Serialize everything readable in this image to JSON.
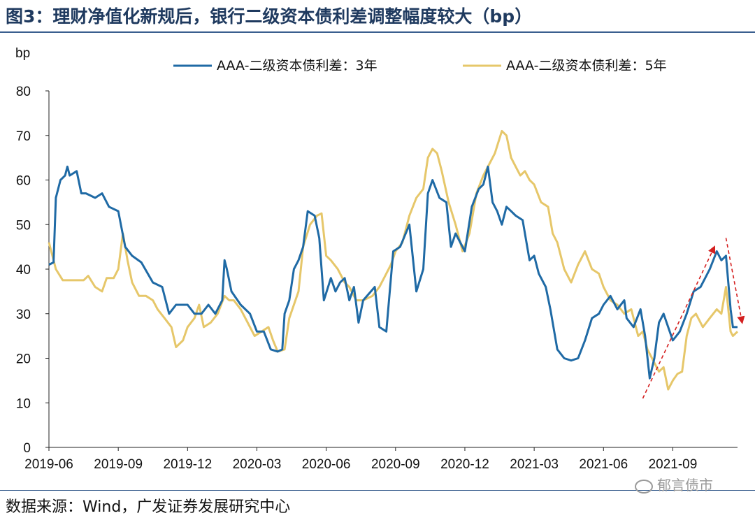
{
  "header": {
    "title": "图3：理财净值化新规后，银行二级资本债利差调整幅度较大（bp）"
  },
  "footer": {
    "source": "数据来源：Wind，广发证券发展研究中心",
    "watermark": "郁言债市"
  },
  "colors": {
    "series_3y": "#1f6aa5",
    "series_5y": "#e6c76a",
    "arrow": "#d42020"
  },
  "chart_data": {
    "type": "line",
    "title": "理财净值化新规后，银行二级资本债利差调整幅度较大（bp）",
    "ylabel": "bp",
    "xlabel": "",
    "ylim": [
      0,
      80
    ],
    "yticks": [
      0,
      10,
      20,
      30,
      40,
      50,
      60,
      70,
      80
    ],
    "x_range": [
      0,
      29.8
    ],
    "xticks": [
      {
        "label": "2019-06",
        "month": 0
      },
      {
        "label": "2019-09",
        "month": 3
      },
      {
        "label": "2019-12",
        "month": 6
      },
      {
        "label": "2020-03",
        "month": 9
      },
      {
        "label": "2020-06",
        "month": 12
      },
      {
        "label": "2020-09",
        "month": 15
      },
      {
        "label": "2020-12",
        "month": 18
      },
      {
        "label": "2021-03",
        "month": 21
      },
      {
        "label": "2021-06",
        "month": 24
      },
      {
        "label": "2021-09",
        "month": 27
      }
    ],
    "legend_position": "top",
    "series": [
      {
        "name": "AAA-二级资本债利差：3年",
        "key": "s3",
        "points": [
          [
            0.0,
            41
          ],
          [
            0.2,
            41.5
          ],
          [
            0.3,
            56
          ],
          [
            0.5,
            60
          ],
          [
            0.7,
            61
          ],
          [
            0.8,
            63
          ],
          [
            0.9,
            61
          ],
          [
            1.2,
            62
          ],
          [
            1.4,
            57
          ],
          [
            1.6,
            57
          ],
          [
            2.0,
            56
          ],
          [
            2.3,
            57
          ],
          [
            2.6,
            54
          ],
          [
            3.0,
            53
          ],
          [
            3.3,
            45
          ],
          [
            3.6,
            43
          ],
          [
            4.0,
            41.5
          ],
          [
            4.5,
            37
          ],
          [
            4.9,
            36
          ],
          [
            5.2,
            30
          ],
          [
            5.5,
            32
          ],
          [
            6.0,
            32
          ],
          [
            6.3,
            30
          ],
          [
            6.6,
            30
          ],
          [
            6.9,
            32
          ],
          [
            7.2,
            30
          ],
          [
            7.5,
            33
          ],
          [
            7.6,
            42
          ],
          [
            7.7,
            40
          ],
          [
            7.9,
            35
          ],
          [
            8.3,
            32
          ],
          [
            8.7,
            30
          ],
          [
            9.0,
            26
          ],
          [
            9.3,
            26
          ],
          [
            9.6,
            22
          ],
          [
            9.9,
            21.5
          ],
          [
            10.1,
            22
          ],
          [
            10.2,
            30
          ],
          [
            10.4,
            33
          ],
          [
            10.6,
            40
          ],
          [
            10.8,
            42
          ],
          [
            11.0,
            45
          ],
          [
            11.2,
            53
          ],
          [
            11.5,
            52
          ],
          [
            11.7,
            47
          ],
          [
            11.9,
            33
          ],
          [
            12.2,
            38
          ],
          [
            12.4,
            35
          ],
          [
            12.6,
            37
          ],
          [
            12.8,
            38
          ],
          [
            13.0,
            33
          ],
          [
            13.2,
            36
          ],
          [
            13.4,
            28
          ],
          [
            13.6,
            33
          ],
          [
            14.1,
            36
          ],
          [
            14.3,
            27
          ],
          [
            14.6,
            26
          ],
          [
            14.9,
            44
          ],
          [
            15.2,
            45
          ],
          [
            15.6,
            50
          ],
          [
            15.9,
            35
          ],
          [
            16.2,
            40
          ],
          [
            16.4,
            57
          ],
          [
            16.6,
            60
          ],
          [
            16.9,
            56
          ],
          [
            17.2,
            55
          ],
          [
            17.4,
            45
          ],
          [
            17.6,
            48
          ],
          [
            18.0,
            44
          ],
          [
            18.3,
            54
          ],
          [
            18.6,
            58
          ],
          [
            18.8,
            59
          ],
          [
            19.0,
            63
          ],
          [
            19.2,
            55
          ],
          [
            19.4,
            53
          ],
          [
            19.6,
            50
          ],
          [
            19.8,
            54
          ],
          [
            20.0,
            53
          ],
          [
            20.2,
            52
          ],
          [
            20.5,
            51
          ],
          [
            20.8,
            42
          ],
          [
            21.0,
            43
          ],
          [
            21.2,
            39
          ],
          [
            21.5,
            36
          ],
          [
            21.7,
            31
          ],
          [
            22.0,
            22
          ],
          [
            22.3,
            20
          ],
          [
            22.6,
            19.5
          ],
          [
            22.9,
            20
          ],
          [
            23.2,
            24
          ],
          [
            23.5,
            29
          ],
          [
            23.8,
            30
          ],
          [
            24.0,
            32
          ],
          [
            24.3,
            34
          ],
          [
            24.6,
            31
          ],
          [
            24.9,
            33
          ],
          [
            25.0,
            29
          ],
          [
            25.3,
            27
          ],
          [
            25.6,
            31
          ],
          [
            25.8,
            25
          ],
          [
            26.0,
            15.5
          ],
          [
            26.2,
            20
          ],
          [
            26.4,
            28
          ],
          [
            26.6,
            30
          ],
          [
            26.8,
            27
          ],
          [
            27.0,
            24
          ],
          [
            27.3,
            26
          ],
          [
            27.6,
            30
          ],
          [
            27.9,
            35
          ],
          [
            28.2,
            36
          ],
          [
            28.4,
            38
          ],
          [
            28.6,
            40
          ],
          [
            28.9,
            44
          ],
          [
            29.1,
            42
          ],
          [
            29.3,
            43
          ],
          [
            29.5,
            31
          ],
          [
            29.6,
            27
          ],
          [
            29.8,
            27
          ]
        ]
      },
      {
        "name": "AAA-二级资本债利差：5年",
        "key": "s5",
        "points": [
          [
            0.0,
            46
          ],
          [
            0.3,
            40
          ],
          [
            0.6,
            37.5
          ],
          [
            1.0,
            37.5
          ],
          [
            1.5,
            37.5
          ],
          [
            1.7,
            38.5
          ],
          [
            2.0,
            36
          ],
          [
            2.3,
            35
          ],
          [
            2.5,
            38
          ],
          [
            2.8,
            38
          ],
          [
            3.0,
            40
          ],
          [
            3.2,
            48
          ],
          [
            3.4,
            42
          ],
          [
            3.6,
            37
          ],
          [
            3.9,
            34
          ],
          [
            4.2,
            34
          ],
          [
            4.5,
            33
          ],
          [
            4.7,
            31
          ],
          [
            5.0,
            29
          ],
          [
            5.3,
            27
          ],
          [
            5.5,
            22.5
          ],
          [
            5.8,
            24
          ],
          [
            6.0,
            27
          ],
          [
            6.3,
            29
          ],
          [
            6.5,
            32
          ],
          [
            6.7,
            27
          ],
          [
            7.0,
            28
          ],
          [
            7.3,
            30
          ],
          [
            7.6,
            34
          ],
          [
            7.8,
            33
          ],
          [
            8.0,
            33
          ],
          [
            8.3,
            31
          ],
          [
            8.6,
            28
          ],
          [
            8.9,
            25
          ],
          [
            9.2,
            26
          ],
          [
            9.5,
            27
          ],
          [
            9.7,
            24
          ],
          [
            9.9,
            21.5
          ],
          [
            10.2,
            22
          ],
          [
            10.4,
            29
          ],
          [
            10.6,
            32
          ],
          [
            10.8,
            35
          ],
          [
            11.0,
            45
          ],
          [
            11.3,
            50
          ],
          [
            11.6,
            52
          ],
          [
            11.8,
            52.5
          ],
          [
            12.0,
            43
          ],
          [
            12.2,
            42
          ],
          [
            12.5,
            40
          ],
          [
            12.8,
            37
          ],
          [
            13.0,
            36
          ],
          [
            13.3,
            33
          ],
          [
            13.6,
            33
          ],
          [
            14.0,
            34
          ],
          [
            14.3,
            36
          ],
          [
            14.5,
            38
          ],
          [
            14.8,
            41
          ],
          [
            15.0,
            44
          ],
          [
            15.3,
            46
          ],
          [
            15.6,
            52
          ],
          [
            15.9,
            56
          ],
          [
            16.2,
            58
          ],
          [
            16.4,
            65
          ],
          [
            16.6,
            67
          ],
          [
            16.8,
            66
          ],
          [
            17.0,
            62
          ],
          [
            17.3,
            55
          ],
          [
            17.6,
            50
          ],
          [
            17.9,
            44
          ],
          [
            18.2,
            48
          ],
          [
            18.5,
            57
          ],
          [
            18.8,
            61
          ],
          [
            19.1,
            64
          ],
          [
            19.3,
            66
          ],
          [
            19.6,
            71
          ],
          [
            19.8,
            70
          ],
          [
            20.0,
            65
          ],
          [
            20.2,
            63
          ],
          [
            20.4,
            61
          ],
          [
            20.6,
            62
          ],
          [
            20.8,
            60
          ],
          [
            21.0,
            59
          ],
          [
            21.3,
            55
          ],
          [
            21.6,
            54
          ],
          [
            21.8,
            48
          ],
          [
            22.0,
            46
          ],
          [
            22.3,
            40
          ],
          [
            22.6,
            37
          ],
          [
            22.9,
            41
          ],
          [
            23.2,
            44
          ],
          [
            23.5,
            40
          ],
          [
            23.8,
            39
          ],
          [
            24.0,
            36
          ],
          [
            24.3,
            33
          ],
          [
            24.6,
            32
          ],
          [
            24.9,
            30
          ],
          [
            25.2,
            31
          ],
          [
            25.5,
            25
          ],
          [
            25.7,
            26
          ],
          [
            25.9,
            22
          ],
          [
            26.2,
            19
          ],
          [
            26.4,
            17
          ],
          [
            26.6,
            18
          ],
          [
            26.8,
            13
          ],
          [
            27.0,
            15
          ],
          [
            27.2,
            16.5
          ],
          [
            27.4,
            17
          ],
          [
            27.6,
            25
          ],
          [
            27.8,
            29
          ],
          [
            28.0,
            30
          ],
          [
            28.3,
            27
          ],
          [
            28.6,
            29
          ],
          [
            28.9,
            31
          ],
          [
            29.1,
            30
          ],
          [
            29.3,
            36
          ],
          [
            29.5,
            26
          ],
          [
            29.6,
            25
          ],
          [
            29.8,
            26
          ]
        ]
      }
    ],
    "annotations": [
      {
        "type": "arrow",
        "style": "dashed",
        "direction": "up",
        "from": [
          25.7,
          11
        ],
        "to": [
          28.8,
          45
        ]
      },
      {
        "type": "arrow",
        "style": "dashed",
        "direction": "down",
        "from": [
          29.3,
          47
        ],
        "to": [
          30.0,
          28
        ]
      }
    ]
  }
}
